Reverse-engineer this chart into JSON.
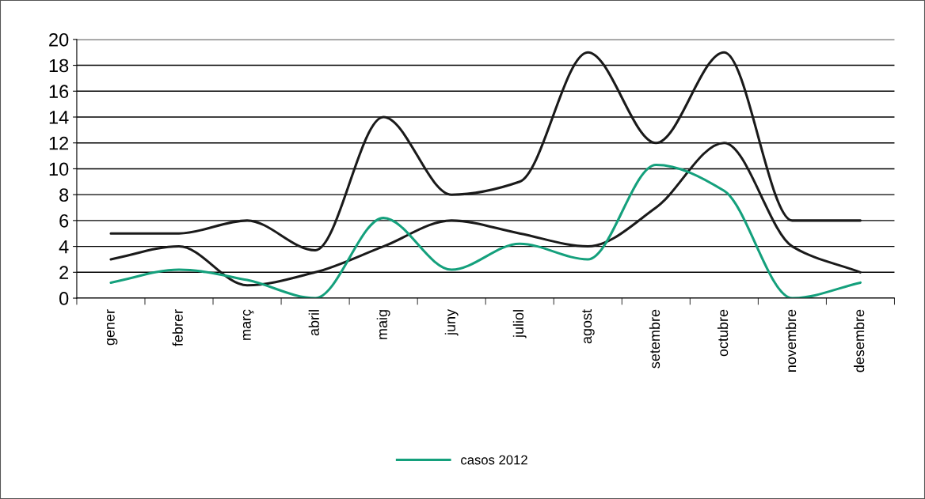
{
  "chart_data": {
    "type": "line",
    "categories": [
      "gener",
      "febrer",
      "març",
      "abril",
      "maig",
      "juny",
      "juliol",
      "agost",
      "setembre",
      "octubre",
      "novembre",
      "desembre"
    ],
    "series": [
      {
        "color": "#1a1a1a",
        "values": [
          5,
          5,
          6,
          3.7,
          14,
          8,
          9,
          19,
          12,
          19,
          6,
          6
        ]
      },
      {
        "color": "#1a1a1a",
        "values": [
          3,
          4,
          1,
          2,
          4,
          6,
          5,
          4,
          7,
          12,
          4,
          2
        ]
      },
      {
        "name": "casos 2012",
        "color": "#14a07c",
        "values": [
          1.2,
          2.2,
          1.4,
          0,
          6.2,
          2.2,
          4.2,
          3,
          10.3,
          8.3,
          0,
          1.2
        ]
      }
    ],
    "ylim": [
      0,
      20
    ],
    "yticks": [
      0,
      2,
      4,
      6,
      8,
      10,
      12,
      14,
      16,
      18,
      20
    ],
    "grid": "y",
    "legend": "bottom",
    "marker": "none",
    "line_style": "solid"
  }
}
